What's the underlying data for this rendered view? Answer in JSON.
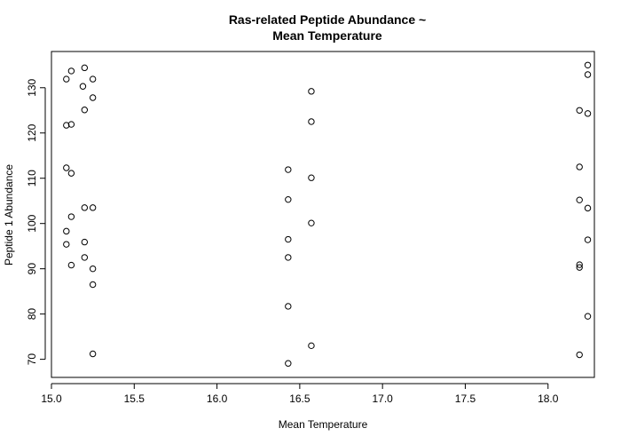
{
  "chart_data": {
    "type": "scatter",
    "title_lines": [
      "Ras-related Peptide Abundance ~",
      "Mean Temperature"
    ],
    "xlabel": "Mean Temperature",
    "ylabel": "Peptide 1 Abundance",
    "xlim": [
      15.0,
      18.28
    ],
    "ylim": [
      66,
      138
    ],
    "x_ticks": [
      15.0,
      15.5,
      16.0,
      16.5,
      17.0,
      17.5,
      18.0
    ],
    "x_tick_labels": [
      "15.0",
      "15.5",
      "16.0",
      "16.5",
      "17.0",
      "17.5",
      "18.0"
    ],
    "y_ticks": [
      70,
      80,
      90,
      100,
      110,
      120,
      130
    ],
    "y_tick_labels": [
      "70",
      "80",
      "90",
      "100",
      "110",
      "120",
      "130"
    ],
    "grid": false,
    "legend": "none",
    "series": [
      {
        "marker": "open-circle",
        "color": "#000000",
        "points": [
          [
            15.09,
            131.9
          ],
          [
            15.12,
            133.7
          ],
          [
            15.2,
            134.4
          ],
          [
            15.25,
            131.9
          ],
          [
            15.19,
            130.3
          ],
          [
            15.25,
            127.8
          ],
          [
            15.2,
            125.1
          ],
          [
            15.09,
            121.7
          ],
          [
            15.12,
            121.9
          ],
          [
            15.09,
            112.3
          ],
          [
            15.12,
            111.1
          ],
          [
            15.2,
            103.5
          ],
          [
            15.25,
            103.5
          ],
          [
            15.12,
            101.5
          ],
          [
            15.09,
            98.3
          ],
          [
            15.09,
            95.4
          ],
          [
            15.2,
            95.9
          ],
          [
            15.2,
            92.5
          ],
          [
            15.12,
            90.8
          ],
          [
            15.25,
            90.0
          ],
          [
            15.25,
            86.5
          ],
          [
            15.25,
            71.2
          ],
          [
            16.57,
            129.2
          ],
          [
            16.57,
            122.5
          ],
          [
            16.43,
            111.9
          ],
          [
            16.57,
            110.1
          ],
          [
            16.43,
            105.3
          ],
          [
            16.57,
            100.1
          ],
          [
            16.43,
            96.5
          ],
          [
            16.43,
            92.5
          ],
          [
            16.43,
            81.7
          ],
          [
            16.57,
            73.0
          ],
          [
            16.43,
            69.1
          ],
          [
            18.24,
            135.0
          ],
          [
            18.24,
            132.9
          ],
          [
            18.19,
            125.0
          ],
          [
            18.24,
            124.3
          ],
          [
            18.19,
            112.5
          ],
          [
            18.19,
            105.2
          ],
          [
            18.24,
            103.4
          ],
          [
            18.24,
            96.4
          ],
          [
            18.19,
            90.9
          ],
          [
            18.19,
            90.3
          ],
          [
            18.24,
            79.5
          ],
          [
            18.19,
            71.0
          ]
        ]
      }
    ]
  }
}
